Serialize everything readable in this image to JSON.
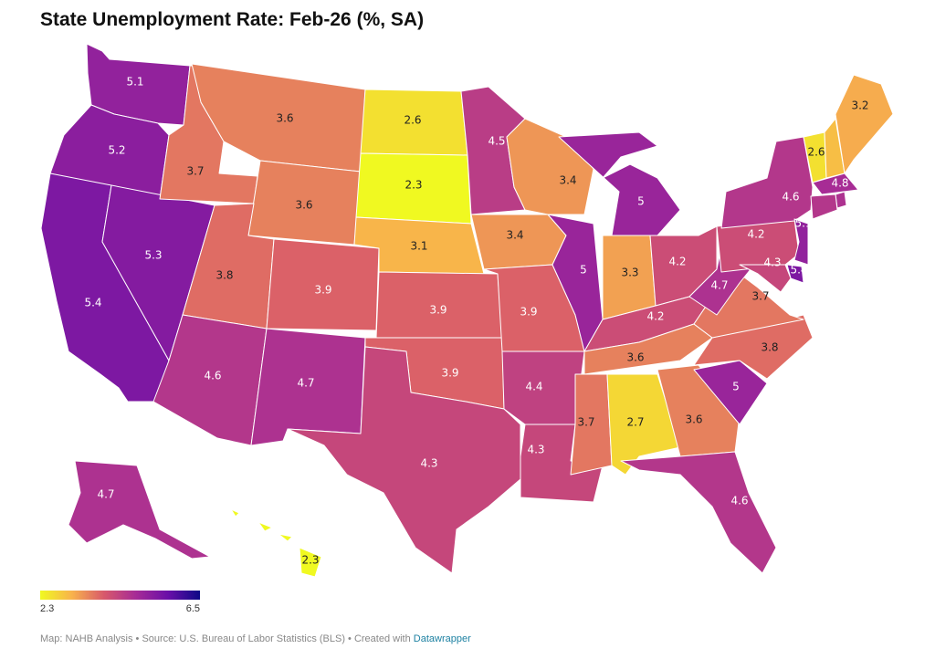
{
  "title": "State Unemployment Rate: Feb-26 (%, SA)",
  "legend": {
    "min_label": "2.3",
    "max_label": "6.5",
    "min": 2.3,
    "max": 6.5,
    "gradient": [
      "#f0f921",
      "#f8b24c",
      "#d8596b",
      "#a62b96",
      "#6a0fa8",
      "#0d0887"
    ]
  },
  "footer": {
    "text": "Map: NAHB Analysis • Source: U.S. Bureau of Labor Statistics (BLS) • Created with ",
    "link": "Datawrapper"
  },
  "states": [
    {
      "id": "WA",
      "value": "5.1"
    },
    {
      "id": "OR",
      "value": "5.2"
    },
    {
      "id": "CA",
      "value": "5.4"
    },
    {
      "id": "NV",
      "value": "5.3"
    },
    {
      "id": "ID",
      "value": "3.7"
    },
    {
      "id": "MT",
      "value": "3.6"
    },
    {
      "id": "WY",
      "value": "3.6"
    },
    {
      "id": "UT",
      "value": "3.8"
    },
    {
      "id": "AZ",
      "value": "4.6"
    },
    {
      "id": "CO",
      "value": "3.9"
    },
    {
      "id": "NM",
      "value": "4.7"
    },
    {
      "id": "ND",
      "value": "2.6"
    },
    {
      "id": "SD",
      "value": "2.3"
    },
    {
      "id": "NE",
      "value": "3.1"
    },
    {
      "id": "KS",
      "value": "3.9"
    },
    {
      "id": "OK",
      "value": "3.9"
    },
    {
      "id": "TX",
      "value": "4.3"
    },
    {
      "id": "MN",
      "value": "4.5"
    },
    {
      "id": "IA",
      "value": "3.4"
    },
    {
      "id": "MO",
      "value": "3.9"
    },
    {
      "id": "AR",
      "value": "4.4"
    },
    {
      "id": "LA",
      "value": "4.3"
    },
    {
      "id": "WI",
      "value": "3.4"
    },
    {
      "id": "IL",
      "value": "5"
    },
    {
      "id": "MI",
      "value": "5"
    },
    {
      "id": "IN",
      "value": "3.3"
    },
    {
      "id": "OH",
      "value": "4.2"
    },
    {
      "id": "KY",
      "value": "4.2"
    },
    {
      "id": "TN",
      "value": "3.6"
    },
    {
      "id": "MS",
      "value": "3.7"
    },
    {
      "id": "AL",
      "value": "2.7"
    },
    {
      "id": "GA",
      "value": "3.6"
    },
    {
      "id": "FL",
      "value": "4.6"
    },
    {
      "id": "SC",
      "value": "5"
    },
    {
      "id": "NC",
      "value": "3.8"
    },
    {
      "id": "VA",
      "value": "3.7"
    },
    {
      "id": "WV",
      "value": "4.7"
    },
    {
      "id": "PA",
      "value": "4.2"
    },
    {
      "id": "NY",
      "value": "4.6"
    },
    {
      "id": "VT",
      "value": "2.6"
    },
    {
      "id": "NH",
      "value": ""
    },
    {
      "id": "ME",
      "value": "3.2"
    },
    {
      "id": "MA",
      "value": "4.8"
    },
    {
      "id": "RI",
      "value": ""
    },
    {
      "id": "CT",
      "value": ""
    },
    {
      "id": "NJ",
      "value": "5.1"
    },
    {
      "id": "DE",
      "value": "5.4"
    },
    {
      "id": "MD",
      "value": "4.3"
    },
    {
      "id": "AK",
      "value": "4.7"
    },
    {
      "id": "HI",
      "value": "2.3"
    }
  ]
}
